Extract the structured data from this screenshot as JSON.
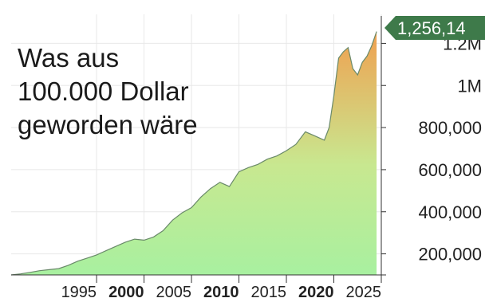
{
  "title_lines": [
    "Was aus",
    "100.000 Dollar",
    "geworden wäre"
  ],
  "last_value_label": "1,256,14",
  "chart_data": {
    "type": "area",
    "title": "Was aus 100.000 Dollar geworden wäre",
    "xlabel": "",
    "ylabel": "",
    "xlim": [
      1986,
      2025
    ],
    "ylim": [
      100000,
      1300000
    ],
    "grid": true,
    "legend": "none",
    "colors": {
      "low": "#a8f0a0",
      "high": "#f0a050",
      "line": "#6a8a6a",
      "callout": "#3e7a4a"
    },
    "x_ticks": [
      {
        "value": 1995,
        "label": "1995",
        "bold": false
      },
      {
        "value": 2000,
        "label": "2000",
        "bold": true
      },
      {
        "value": 2005,
        "label": "2005",
        "bold": false
      },
      {
        "value": 2010,
        "label": "2010",
        "bold": true
      },
      {
        "value": 2015,
        "label": "2015",
        "bold": false
      },
      {
        "value": 2020,
        "label": "2020",
        "bold": true
      },
      {
        "value": 2025,
        "label": "2025",
        "bold": false
      }
    ],
    "y_ticks": [
      {
        "value": 200000,
        "label": "200,000"
      },
      {
        "value": 400000,
        "label": "400,000"
      },
      {
        "value": 600000,
        "label": "600,000"
      },
      {
        "value": 800000,
        "label": "800,000"
      },
      {
        "value": 1000000,
        "label": "1M"
      },
      {
        "value": 1200000,
        "label": "1.2M"
      }
    ],
    "series": [
      {
        "x": [
          1986,
          1987,
          1988,
          1989,
          1990,
          1991,
          1992,
          1993,
          1994,
          1995,
          1996,
          1997,
          1998,
          1999,
          2000,
          2001,
          2002,
          2003,
          2004,
          2005,
          2006,
          2007,
          2008,
          2009,
          2010,
          2011,
          2012,
          2013,
          2014,
          2015,
          2016,
          2017,
          2018,
          2019,
          2019.5,
          2020,
          2020.5,
          2021,
          2021.5,
          2022,
          2022.5,
          2023,
          2023.5,
          2024,
          2024.5
        ],
        "y": [
          100000,
          105000,
          112000,
          120000,
          125000,
          130000,
          145000,
          165000,
          180000,
          195000,
          215000,
          235000,
          255000,
          270000,
          265000,
          280000,
          310000,
          360000,
          395000,
          420000,
          470000,
          510000,
          540000,
          520000,
          590000,
          610000,
          625000,
          650000,
          665000,
          690000,
          720000,
          780000,
          760000,
          740000,
          800000,
          950000,
          1130000,
          1160000,
          1180000,
          1080000,
          1050000,
          1110000,
          1140000,
          1190000,
          1256140
        ]
      }
    ]
  }
}
